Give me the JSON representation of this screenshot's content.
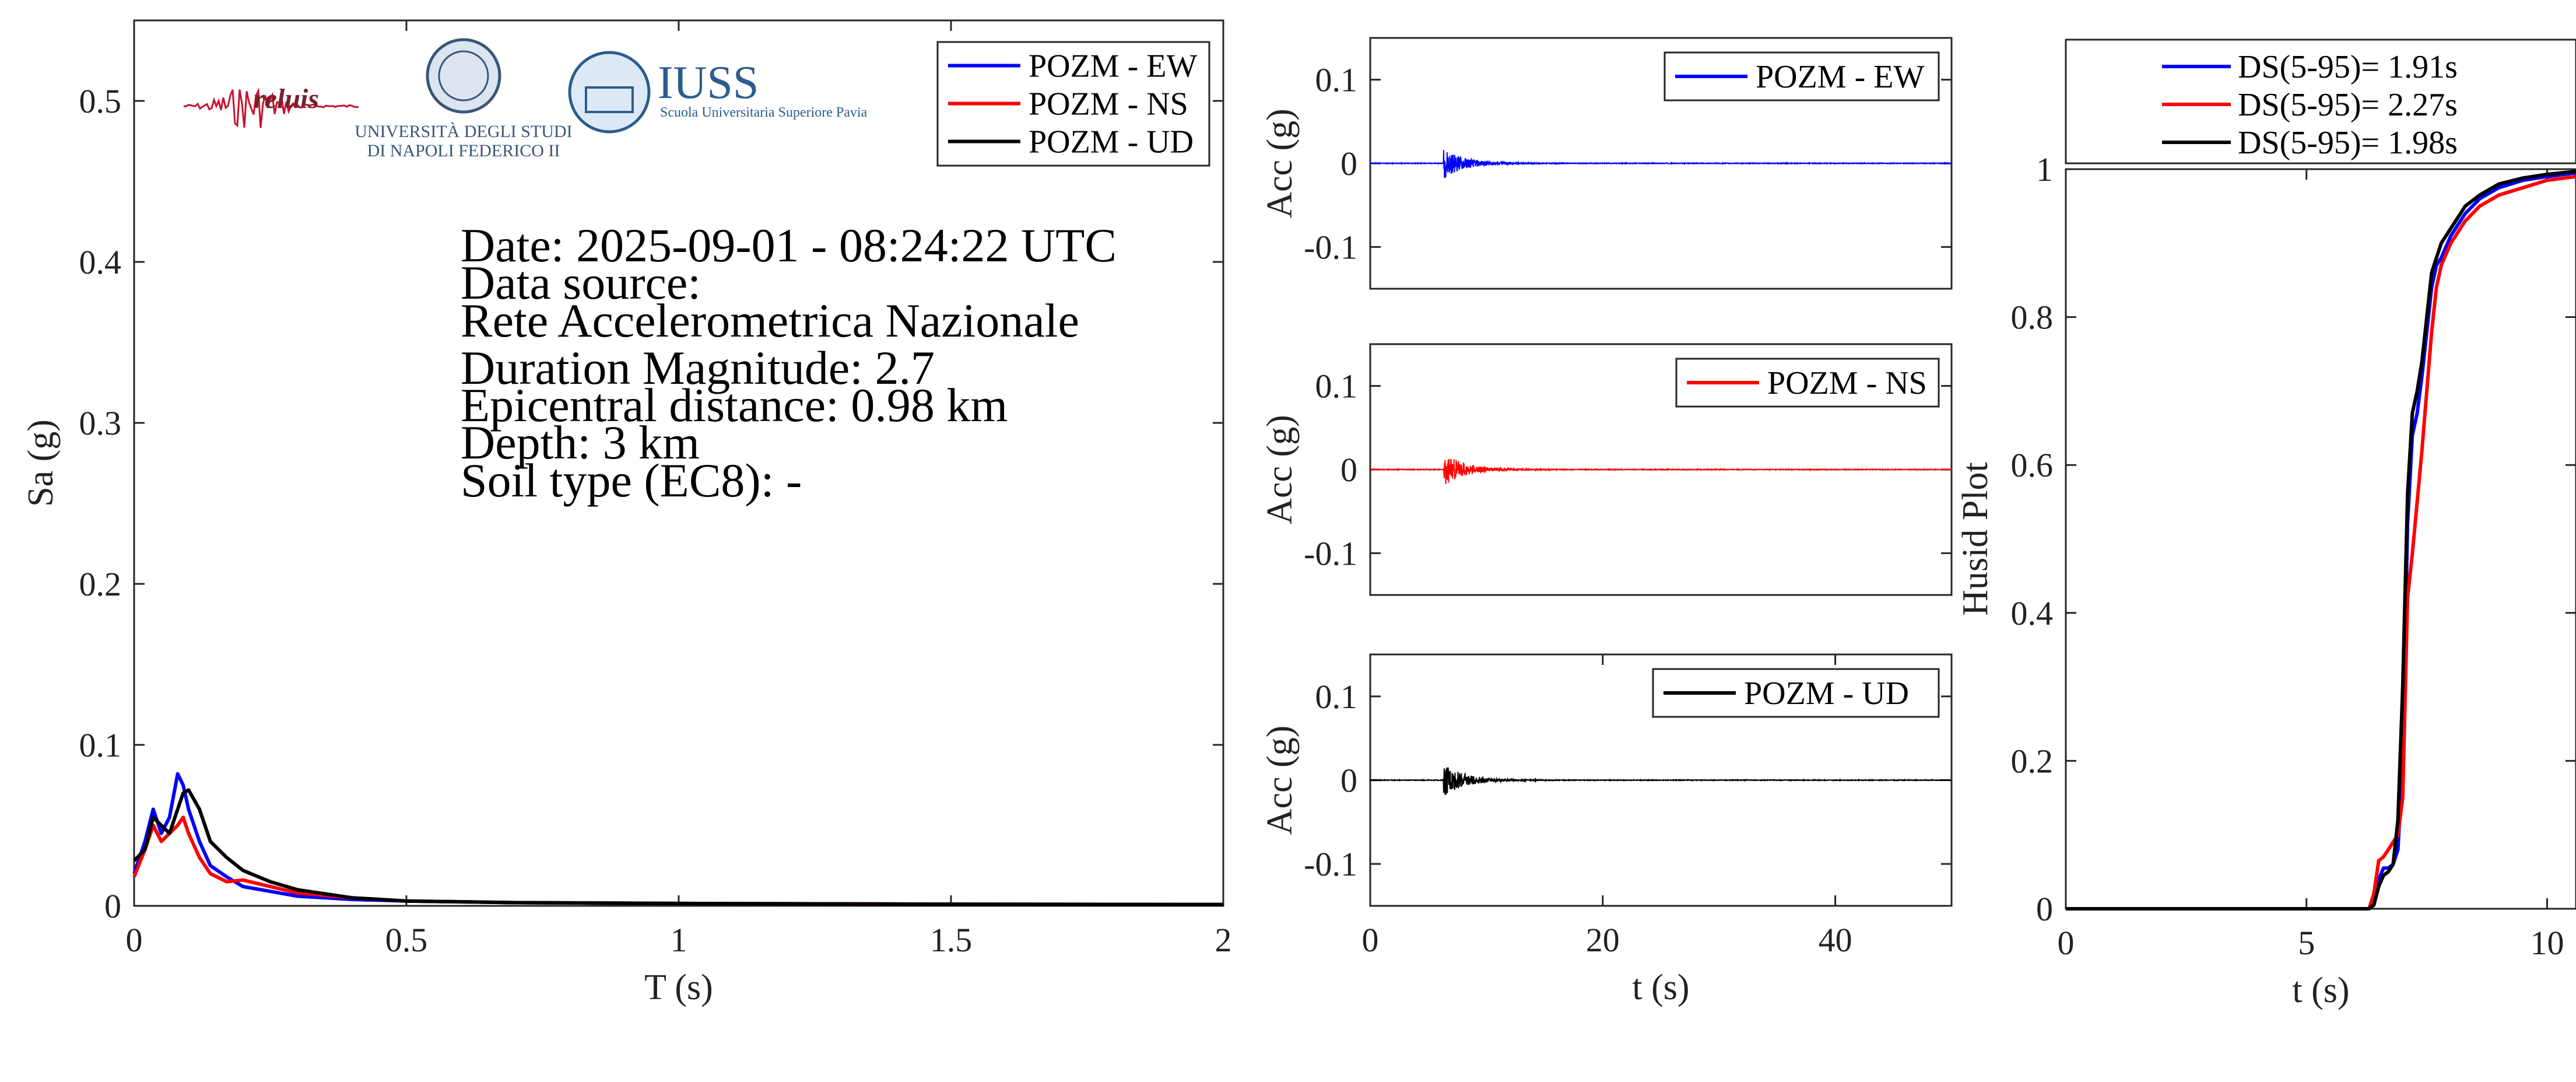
{
  "info": {
    "lines": [
      "Date: 2025-09-01 - 08:24:22 UTC",
      "Data source:",
      "Rete Accelerometrica Nazionale",
      "Duration Magnitude: 2.7",
      "Epicentral distance: 0.98 km",
      "Depth: 3 km",
      "Soil type (EC8): -"
    ]
  },
  "logos": {
    "reluis": "reluis",
    "unina_1": "UNIVERSITÀ DEGLI STUDI",
    "unina_2": "DI NAPOLI FEDERICO II",
    "iuss_1": "IUSS",
    "iuss_2": "Scuola Universitaria Superiore Pavia"
  },
  "colors": {
    "EW": "#0000ff",
    "NS": "#ff0000",
    "UD": "#000000"
  },
  "chart_data": [
    {
      "type": "line",
      "xlabel": "T (s)",
      "ylabel": "Sa (g)",
      "xlim": [
        0,
        2
      ],
      "ylim": [
        0,
        0.55
      ],
      "xticks": [
        0,
        0.5,
        1,
        1.5,
        2
      ],
      "yticks": [
        0,
        0.1,
        0.2,
        0.3,
        0.4,
        0.5
      ],
      "legend": "top-right",
      "series": [
        {
          "name": "POZM - EW",
          "x": [
            0,
            0.02,
            0.035,
            0.05,
            0.065,
            0.08,
            0.09,
            0.1,
            0.12,
            0.14,
            0.17,
            0.2,
            0.25,
            0.3,
            0.4,
            0.5,
            0.7,
            1,
            1.5,
            2
          ],
          "y": [
            0.02,
            0.04,
            0.06,
            0.045,
            0.055,
            0.082,
            0.075,
            0.06,
            0.04,
            0.025,
            0.018,
            0.012,
            0.009,
            0.006,
            0.004,
            0.003,
            0.002,
            0.0015,
            0.001,
            0.0008
          ]
        },
        {
          "name": "POZM - NS",
          "x": [
            0,
            0.02,
            0.035,
            0.05,
            0.065,
            0.08,
            0.09,
            0.1,
            0.12,
            0.14,
            0.17,
            0.2,
            0.25,
            0.3,
            0.4,
            0.5,
            0.7,
            1,
            1.5,
            2
          ],
          "y": [
            0.018,
            0.035,
            0.05,
            0.04,
            0.045,
            0.05,
            0.055,
            0.045,
            0.03,
            0.02,
            0.015,
            0.016,
            0.012,
            0.008,
            0.005,
            0.003,
            0.002,
            0.0015,
            0.001,
            0.0008
          ]
        },
        {
          "name": "POZM - UD",
          "x": [
            0,
            0.02,
            0.035,
            0.05,
            0.065,
            0.08,
            0.09,
            0.1,
            0.12,
            0.14,
            0.17,
            0.2,
            0.25,
            0.3,
            0.4,
            0.5,
            0.7,
            1,
            1.5,
            2
          ],
          "y": [
            0.028,
            0.035,
            0.055,
            0.05,
            0.045,
            0.06,
            0.07,
            0.072,
            0.06,
            0.04,
            0.03,
            0.022,
            0.015,
            0.01,
            0.005,
            0.003,
            0.002,
            0.0015,
            0.001,
            0.0008
          ]
        }
      ]
    },
    {
      "type": "line",
      "ylabel": "Acc (g)",
      "xlim": [
        0,
        50
      ],
      "ylim": [
        -0.15,
        0.15
      ],
      "yticks": [
        -0.1,
        0,
        0.1
      ],
      "legend": "top-right",
      "series": [
        {
          "name": "POZM - EW",
          "peak": 0.018,
          "onset": 6.3,
          "decay": 1.8
        }
      ]
    },
    {
      "type": "line",
      "ylabel": "Acc (g)",
      "xlim": [
        0,
        50
      ],
      "ylim": [
        -0.15,
        0.15
      ],
      "yticks": [
        -0.1,
        0,
        0.1
      ],
      "legend": "top-right",
      "series": [
        {
          "name": "POZM - NS",
          "peak": 0.02,
          "onset": 6.3,
          "decay": 1.8
        }
      ]
    },
    {
      "type": "line",
      "xlabel": "t (s)",
      "ylabel": "Acc (g)",
      "xlim": [
        0,
        50
      ],
      "ylim": [
        -0.15,
        0.15
      ],
      "xticks": [
        0,
        20,
        40
      ],
      "yticks": [
        -0.1,
        0,
        0.1
      ],
      "legend": "top-right",
      "series": [
        {
          "name": "POZM - UD",
          "peak": 0.02,
          "onset": 6.3,
          "decay": 1.8
        }
      ]
    },
    {
      "type": "line",
      "xlabel": "t (s)",
      "ylabel": "Husid Plot",
      "xlim": [
        0,
        10.6
      ],
      "ylim": [
        0,
        1
      ],
      "xticks": [
        0,
        5,
        10
      ],
      "yticks": [
        0,
        0.2,
        0.4,
        0.6,
        0.8,
        1
      ],
      "legend": "top",
      "series": [
        {
          "name": "DS(5-95)= 1.91s",
          "x": [
            0,
            6.3,
            6.4,
            6.5,
            6.6,
            6.7,
            6.8,
            6.9,
            7.0,
            7.1,
            7.2,
            7.3,
            7.4,
            7.5,
            7.6,
            7.7,
            7.8,
            8.0,
            8.3,
            8.6,
            9.0,
            9.5,
            10.0,
            10.6
          ],
          "y": [
            0,
            0,
            0.01,
            0.04,
            0.055,
            0.055,
            0.06,
            0.08,
            0.2,
            0.52,
            0.64,
            0.67,
            0.72,
            0.78,
            0.84,
            0.87,
            0.88,
            0.91,
            0.94,
            0.96,
            0.975,
            0.985,
            0.99,
            0.995
          ]
        },
        {
          "name": "DS(5-95)= 2.27s",
          "x": [
            0,
            6.3,
            6.4,
            6.5,
            6.6,
            6.7,
            6.8,
            6.9,
            7.0,
            7.1,
            7.2,
            7.3,
            7.4,
            7.5,
            7.6,
            7.7,
            7.8,
            8.0,
            8.3,
            8.6,
            9.0,
            9.5,
            10.0,
            10.6
          ],
          "y": [
            0,
            0,
            0.02,
            0.065,
            0.07,
            0.08,
            0.09,
            0.1,
            0.15,
            0.42,
            0.48,
            0.55,
            0.62,
            0.7,
            0.78,
            0.84,
            0.87,
            0.9,
            0.93,
            0.95,
            0.965,
            0.975,
            0.985,
            0.99
          ]
        },
        {
          "name": "DS(5-95)= 1.98s",
          "x": [
            0,
            6.3,
            6.4,
            6.5,
            6.6,
            6.7,
            6.8,
            6.9,
            7.0,
            7.1,
            7.2,
            7.3,
            7.4,
            7.5,
            7.6,
            7.7,
            7.8,
            8.0,
            8.3,
            8.6,
            9.0,
            9.5,
            10.0,
            10.6
          ],
          "y": [
            0,
            0,
            0.005,
            0.03,
            0.045,
            0.05,
            0.06,
            0.12,
            0.3,
            0.56,
            0.67,
            0.7,
            0.74,
            0.8,
            0.86,
            0.88,
            0.9,
            0.92,
            0.95,
            0.965,
            0.98,
            0.988,
            0.993,
            0.997
          ]
        }
      ]
    }
  ]
}
